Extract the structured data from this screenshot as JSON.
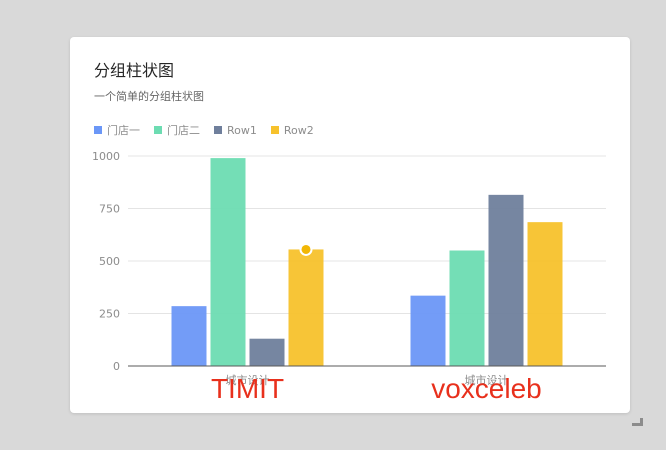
{
  "card": {
    "title": "分组柱状图",
    "subtitle": "一个简单的分组柱状图"
  },
  "overlay_labels": [
    "TIMIT",
    "voxceleb"
  ],
  "colors": {
    "overlay_text": "#e8301c",
    "axis_text": "#8c8c8c",
    "grid": "#e4e4e4",
    "axis_line": "#595959",
    "highlight_point": "#f2b705"
  },
  "chart_data": {
    "type": "bar",
    "categories": [
      "城市设计",
      "城市设计"
    ],
    "series": [
      {
        "name": "门店一",
        "color": "#6b97f7",
        "values": [
          285,
          335
        ]
      },
      {
        "name": "门店二",
        "color": "#6ddcb2",
        "values": [
          990,
          550
        ]
      },
      {
        "name": "Row1",
        "color": "#6f7f9c",
        "values": [
          130,
          815
        ]
      },
      {
        "name": "Row2",
        "color": "#f7c22c",
        "values": [
          555,
          685
        ]
      }
    ],
    "yticks": [
      0,
      250,
      500,
      750,
      1000
    ],
    "ylim": [
      0,
      1000
    ],
    "grid": true,
    "legend_position": "top-left",
    "highlighted_point": {
      "series": "Row2",
      "category_index": 0,
      "value": 555
    }
  }
}
